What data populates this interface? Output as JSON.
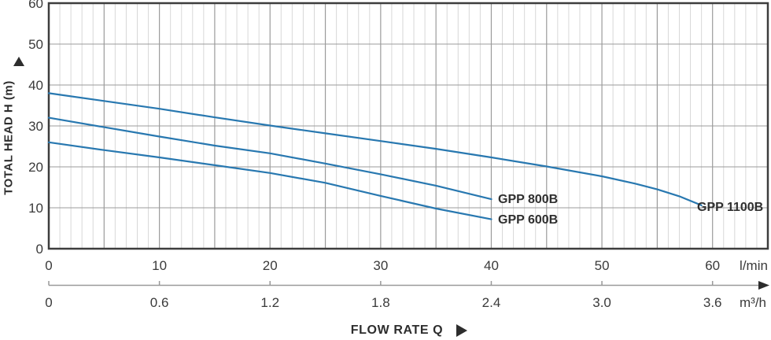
{
  "chart_data": {
    "type": "line",
    "title": "",
    "xlabel": "FLOW RATE Q",
    "ylabel": "TOTAL HEAD H (m)",
    "ylim": [
      0,
      60
    ],
    "xlim_lmin": [
      0,
      65
    ],
    "grid": "minor vertical every 1 l/min, major vertical every 5 l/min, horizontal every 10 m",
    "legend_position": "inline labels at curve ends",
    "y_axis": {
      "label": "TOTAL HEAD H (m)",
      "ticks": [
        0,
        10,
        20,
        30,
        40,
        50,
        60
      ]
    },
    "x_axis_lmin": {
      "unit": "l/min",
      "ticks": [
        0,
        10,
        20,
        30,
        40,
        50,
        60
      ]
    },
    "x_axis_m3h": {
      "unit": "m³/h",
      "ticks": [
        "0",
        "0.6",
        "1.2",
        "1.8",
        "2.4",
        "3.0",
        "3.6"
      ]
    },
    "series": [
      {
        "name": "GPP 600B",
        "points_lmin_m": [
          [
            0,
            26
          ],
          [
            5,
            24.1
          ],
          [
            10,
            22.3
          ],
          [
            15,
            20.4
          ],
          [
            20,
            18.5
          ],
          [
            25,
            16.1
          ],
          [
            30,
            12.9
          ],
          [
            35,
            9.8
          ],
          [
            40,
            7.2
          ]
        ]
      },
      {
        "name": "GPP 800B",
        "points_lmin_m": [
          [
            0,
            32
          ],
          [
            5,
            29.7
          ],
          [
            10,
            27.4
          ],
          [
            15,
            25.2
          ],
          [
            20,
            23.3
          ],
          [
            25,
            20.8
          ],
          [
            30,
            18.2
          ],
          [
            35,
            15.4
          ],
          [
            40,
            12.1
          ]
        ]
      },
      {
        "name": "GPP 1100B",
        "points_lmin_m": [
          [
            0,
            38
          ],
          [
            5,
            36.1
          ],
          [
            10,
            34.2
          ],
          [
            15,
            32.1
          ],
          [
            20,
            30.1
          ],
          [
            25,
            28.2
          ],
          [
            30,
            26.3
          ],
          [
            35,
            24.4
          ],
          [
            40,
            22.3
          ],
          [
            45,
            20.1
          ],
          [
            50,
            17.7
          ],
          [
            53,
            15.9
          ],
          [
            55,
            14.5
          ],
          [
            57,
            12.8
          ],
          [
            59,
            10.6
          ]
        ]
      }
    ],
    "colors": {
      "curve": "#2878b0",
      "grid_minor": "#d8d8d8",
      "grid_major": "#9b9b9b",
      "border": "#3d3d3d",
      "axis_line": "#999999",
      "text": "#3a3a3a",
      "label_text": "#2d2d2d"
    }
  }
}
